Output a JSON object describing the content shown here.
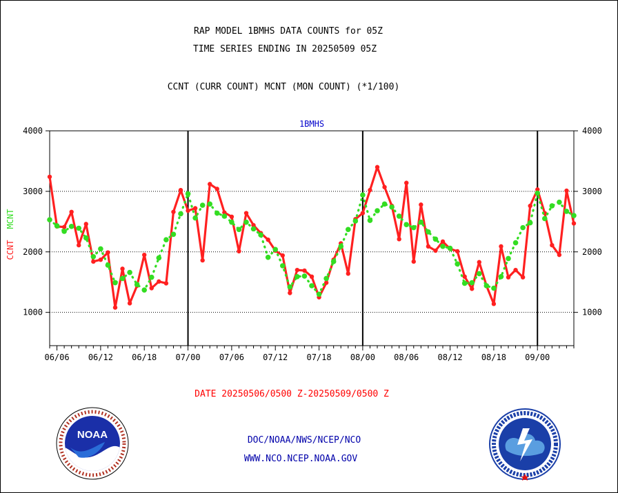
{
  "header": {
    "title_line1": "RAP MODEL 1BMHS DATA COUNTS for 05Z",
    "title_line2": "TIME SERIES ENDING IN 20250509 05Z",
    "subtitle": "CCNT (CURR COUNT) MCNT (MON COUNT) (*1/100)"
  },
  "footer": {
    "date_range": "DATE 20250506/0500 Z-20250509/0500 Z",
    "org_path": "DOC/NOAA/NWS/NCEP/NCO",
    "website": "WWW.NCO.NCEP.NOAA.GOV"
  },
  "logos": {
    "noaa": "NOAA",
    "nws": "NATIONAL WEATHER SERVICE"
  },
  "colors": {
    "ccnt": "#ff2020",
    "mcnt": "#33dd22",
    "panel_label": "#0000cc",
    "footer_blue": "#0000aa",
    "date_red": "#ff0000"
  },
  "chart_data": {
    "type": "line",
    "panel_label": "1BMHS",
    "ylabel_left_ccnt": "CCNT",
    "ylabel_left_mcnt": "MCNT",
    "ylim": [
      450,
      4000
    ],
    "yticks": [
      1000,
      2000,
      3000,
      4000
    ],
    "x_tick_labels": [
      "06/06",
      "06/12",
      "06/18",
      "07/00",
      "07/06",
      "07/12",
      "07/18",
      "08/00",
      "08/06",
      "08/12",
      "08/18",
      "09/00"
    ],
    "x_tick_positions": [
      1,
      7,
      13,
      19,
      25,
      31,
      37,
      43,
      49,
      55,
      61,
      67
    ],
    "x_range": [
      0,
      72
    ],
    "major_day_lines": [
      19,
      43,
      67
    ],
    "grid_y": [
      1000,
      2000,
      3000
    ],
    "series": [
      {
        "name": "CCNT",
        "values": [
          3240,
          2420,
          2410,
          2660,
          2110,
          2460,
          1840,
          1870,
          1990,
          1080,
          1720,
          1150,
          1440,
          1950,
          1400,
          1510,
          1480,
          2660,
          3020,
          2680,
          2720,
          1860,
          3120,
          3040,
          2650,
          2580,
          2010,
          2640,
          2440,
          2310,
          2200,
          2020,
          1940,
          1320,
          1700,
          1690,
          1590,
          1250,
          1490,
          1870,
          2140,
          1640,
          2540,
          2640,
          3020,
          3400,
          3070,
          2760,
          2210,
          3140,
          1840,
          2780,
          2090,
          2020,
          2170,
          2050,
          2010,
          1590,
          1390,
          1830,
          1440,
          1140,
          2090,
          1580,
          1700,
          1580,
          2760,
          3030,
          2640,
          2110,
          1950,
          3010,
          2470
        ]
      },
      {
        "name": "MCNT",
        "values": [
          2530,
          2430,
          2340,
          2420,
          2390,
          2230,
          1920,
          2050,
          1780,
          1490,
          1560,
          1660,
          1460,
          1370,
          1580,
          1900,
          2200,
          2290,
          2630,
          2960,
          2560,
          2770,
          2790,
          2640,
          2590,
          2490,
          2370,
          2490,
          2380,
          2280,
          1910,
          2040,
          1770,
          1420,
          1590,
          1600,
          1440,
          1300,
          1560,
          1840,
          2090,
          2370,
          2510,
          2940,
          2520,
          2680,
          2790,
          2740,
          2590,
          2450,
          2400,
          2490,
          2330,
          2210,
          2090,
          2060,
          1800,
          1480,
          1490,
          1640,
          1440,
          1400,
          1590,
          1890,
          2150,
          2400,
          2480,
          2970,
          2550,
          2760,
          2820,
          2670,
          2600
        ]
      }
    ]
  }
}
